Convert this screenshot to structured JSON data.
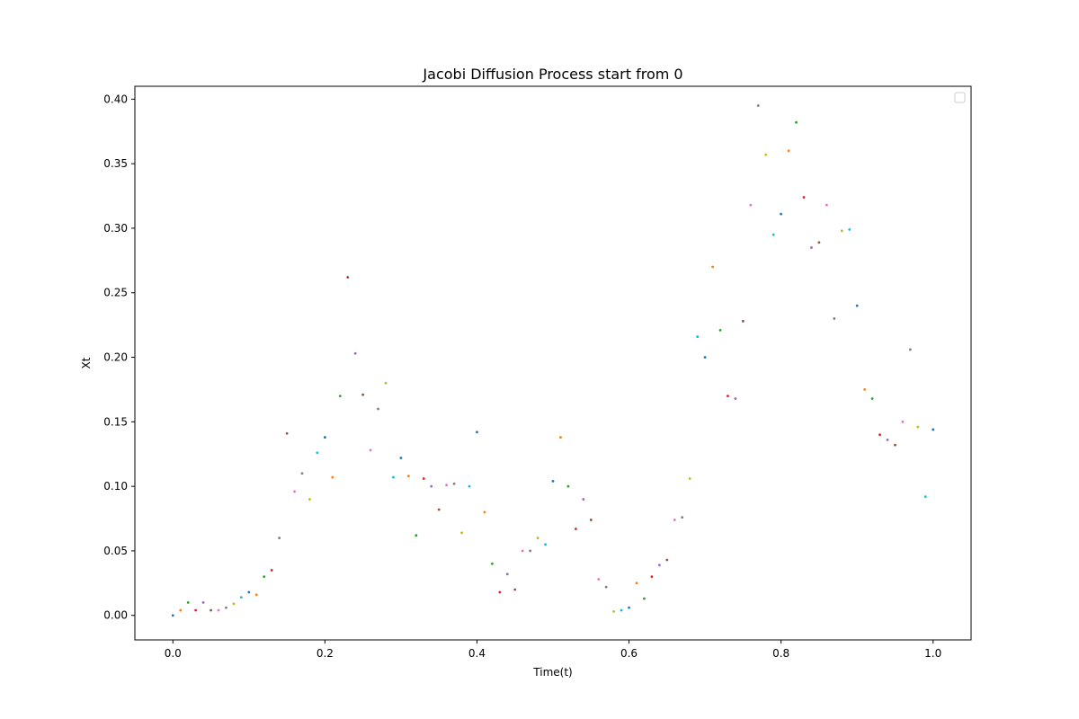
{
  "chart_data": {
    "type": "scatter",
    "title": "Jacobi Diffusion Process start from 0",
    "xlabel": "Time(t)",
    "ylabel": "Xt",
    "xlim": [
      -0.05,
      1.05
    ],
    "ylim": [
      -0.019,
      0.41
    ],
    "xticks": [
      0.0,
      0.2,
      0.4,
      0.6,
      0.8,
      1.0
    ],
    "xtick_labels": [
      "0.0",
      "0.2",
      "0.4",
      "0.6",
      "0.8",
      "1.0"
    ],
    "yticks": [
      0.0,
      0.05,
      0.1,
      0.15,
      0.2,
      0.25,
      0.3,
      0.35,
      0.4
    ],
    "ytick_labels": [
      "0.00",
      "0.05",
      "0.10",
      "0.15",
      "0.20",
      "0.25",
      "0.30",
      "0.35",
      "0.40"
    ],
    "grid": false,
    "legend": "upper-right (empty)",
    "point_colors": [
      "#1f77b4",
      "#ff7f0e",
      "#2ca02c",
      "#d62728",
      "#9467bd",
      "#8c564b",
      "#e377c2",
      "#7f7f7f",
      "#bcbd22",
      "#17becf"
    ],
    "series": [
      {
        "x": [
          0.0,
          0.01,
          0.02,
          0.03,
          0.04,
          0.05,
          0.06,
          0.07,
          0.08,
          0.09,
          0.1,
          0.11,
          0.12,
          0.13,
          0.14,
          0.15,
          0.16,
          0.17,
          0.18,
          0.19,
          0.2,
          0.21,
          0.22,
          0.23,
          0.24,
          0.25,
          0.26,
          0.27,
          0.28,
          0.29,
          0.3,
          0.31,
          0.32,
          0.33,
          0.34,
          0.35,
          0.36,
          0.37,
          0.38,
          0.39,
          0.4,
          0.41,
          0.42,
          0.43,
          0.44,
          0.45,
          0.46,
          0.47,
          0.48,
          0.49,
          0.5,
          0.51,
          0.52,
          0.53,
          0.54,
          0.55,
          0.56,
          0.57,
          0.58,
          0.59,
          0.6,
          0.61,
          0.62,
          0.63,
          0.64,
          0.65,
          0.66,
          0.67,
          0.68,
          0.69,
          0.7,
          0.71,
          0.72,
          0.73,
          0.74,
          0.75,
          0.76,
          0.77,
          0.78,
          0.79,
          0.8,
          0.81,
          0.82,
          0.83,
          0.84,
          0.85,
          0.86,
          0.87,
          0.88,
          0.89,
          0.9,
          0.91,
          0.92,
          0.93,
          0.94,
          0.95,
          0.96,
          0.97,
          0.98,
          0.99,
          1.0
        ],
        "y": [
          0.0,
          0.004,
          0.01,
          0.004,
          0.01,
          0.004,
          0.004,
          0.006,
          0.009,
          0.014,
          0.018,
          0.016,
          0.03,
          0.035,
          0.06,
          0.141,
          0.096,
          0.11,
          0.09,
          0.126,
          0.138,
          0.107,
          0.17,
          0.262,
          0.203,
          0.171,
          0.128,
          0.16,
          0.18,
          0.107,
          0.122,
          0.108,
          0.062,
          0.106,
          0.1,
          0.082,
          0.101,
          0.102,
          0.064,
          0.1,
          0.142,
          0.08,
          0.04,
          0.018,
          0.032,
          0.02,
          0.05,
          0.05,
          0.06,
          0.055,
          0.104,
          0.138,
          0.1,
          0.067,
          0.09,
          0.074,
          0.028,
          0.022,
          0.003,
          0.004,
          0.006,
          0.025,
          0.013,
          0.03,
          0.039,
          0.043,
          0.074,
          0.076,
          0.106,
          0.216,
          0.2,
          0.27,
          0.221,
          0.17,
          0.168,
          0.228,
          0.318,
          0.395,
          0.357,
          0.295,
          0.311,
          0.36,
          0.382,
          0.324,
          0.285,
          0.289,
          0.318,
          0.23,
          0.298,
          0.299,
          0.24,
          0.175,
          0.168,
          0.14,
          0.136,
          0.132,
          0.15,
          0.206,
          0.146,
          0.092,
          0.144
        ]
      }
    ]
  }
}
